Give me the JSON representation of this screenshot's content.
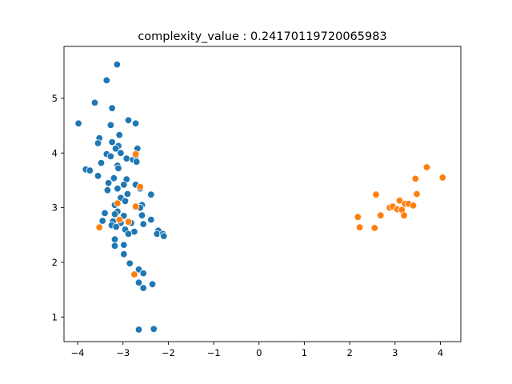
{
  "chart_data": {
    "type": "scatter",
    "title": "complexity_value : 0.24170119720065983",
    "xlabel": "",
    "ylabel": "",
    "xlim": [
      -4.3,
      4.45
    ],
    "ylim": [
      0.55,
      5.95
    ],
    "xticks": [
      -4,
      -3,
      -2,
      -1,
      0,
      1,
      2,
      3,
      4
    ],
    "xtick_labels": [
      "−4",
      "−3",
      "−2",
      "−1",
      "0",
      "1",
      "2",
      "3",
      "4"
    ],
    "yticks": [
      1,
      2,
      3,
      4,
      5
    ],
    "ytick_labels": [
      "1",
      "2",
      "3",
      "4",
      "5"
    ],
    "grid": false,
    "series": [
      {
        "color": "#1f77b4",
        "points": [
          [
            -3.13,
            5.62
          ],
          [
            -3.36,
            5.33
          ],
          [
            -3.62,
            4.92
          ],
          [
            -3.24,
            4.82
          ],
          [
            -3.98,
            4.54
          ],
          [
            -2.88,
            4.6
          ],
          [
            -3.27,
            4.51
          ],
          [
            -2.72,
            4.54
          ],
          [
            -3.08,
            4.33
          ],
          [
            -3.52,
            4.27
          ],
          [
            -3.55,
            4.18
          ],
          [
            -3.24,
            4.2
          ],
          [
            -3.1,
            4.13
          ],
          [
            -2.68,
            4.08
          ],
          [
            -3.16,
            4.08
          ],
          [
            -3.36,
            3.98
          ],
          [
            -3.27,
            3.94
          ],
          [
            -3.05,
            4.0
          ],
          [
            -2.92,
            3.9
          ],
          [
            -2.78,
            3.88
          ],
          [
            -2.72,
            3.95
          ],
          [
            -2.7,
            3.84
          ],
          [
            -3.48,
            3.82
          ],
          [
            -3.12,
            3.77
          ],
          [
            -3.1,
            3.72
          ],
          [
            -3.82,
            3.7
          ],
          [
            -3.73,
            3.68
          ],
          [
            -3.55,
            3.58
          ],
          [
            -3.2,
            3.54
          ],
          [
            -2.92,
            3.52
          ],
          [
            -3.32,
            3.45
          ],
          [
            -2.98,
            3.42
          ],
          [
            -2.72,
            3.42
          ],
          [
            -3.12,
            3.35
          ],
          [
            -3.34,
            3.32
          ],
          [
            -2.62,
            3.35
          ],
          [
            -2.38,
            3.24
          ],
          [
            -2.9,
            3.25
          ],
          [
            -3.05,
            3.18
          ],
          [
            -2.95,
            3.12
          ],
          [
            -3.18,
            3.05
          ],
          [
            -2.58,
            3.05
          ],
          [
            -2.62,
            3.0
          ],
          [
            -3.12,
            2.93
          ],
          [
            -3.18,
            2.88
          ],
          [
            -3.4,
            2.9
          ],
          [
            -2.98,
            2.85
          ],
          [
            -2.58,
            2.86
          ],
          [
            -2.38,
            2.78
          ],
          [
            -3.45,
            2.76
          ],
          [
            -3.22,
            2.75
          ],
          [
            -3.05,
            2.72
          ],
          [
            -3.25,
            2.68
          ],
          [
            -2.82,
            2.72
          ],
          [
            -2.55,
            2.7
          ],
          [
            -3.15,
            2.65
          ],
          [
            -2.95,
            2.6
          ],
          [
            -2.75,
            2.56
          ],
          [
            -2.22,
            2.58
          ],
          [
            -2.25,
            2.52
          ],
          [
            -2.12,
            2.52
          ],
          [
            -2.1,
            2.48
          ],
          [
            -2.88,
            2.52
          ],
          [
            -3.18,
            2.42
          ],
          [
            -2.98,
            2.32
          ],
          [
            -3.18,
            2.3
          ],
          [
            -2.98,
            2.15
          ],
          [
            -2.85,
            1.98
          ],
          [
            -2.65,
            1.87
          ],
          [
            -2.55,
            1.8
          ],
          [
            -2.65,
            1.63
          ],
          [
            -2.35,
            1.6
          ],
          [
            -2.55,
            1.53
          ],
          [
            -2.65,
            0.77
          ],
          [
            -2.32,
            0.78
          ]
        ]
      },
      {
        "color": "#ff7f0e",
        "points": [
          [
            -2.72,
            3.98
          ],
          [
            -2.62,
            3.38
          ],
          [
            -3.12,
            3.08
          ],
          [
            -2.72,
            3.02
          ],
          [
            -2.88,
            2.74
          ],
          [
            -3.08,
            2.78
          ],
          [
            -3.52,
            2.64
          ],
          [
            -2.75,
            1.78
          ],
          [
            2.18,
            2.83
          ],
          [
            2.22,
            2.64
          ],
          [
            2.55,
            2.63
          ],
          [
            2.58,
            3.24
          ],
          [
            2.68,
            2.86
          ],
          [
            2.88,
            3.0
          ],
          [
            2.95,
            3.02
          ],
          [
            3.05,
            2.97
          ],
          [
            3.1,
            3.13
          ],
          [
            3.15,
            2.96
          ],
          [
            3.2,
            2.86
          ],
          [
            3.22,
            3.07
          ],
          [
            3.3,
            3.07
          ],
          [
            3.4,
            3.04
          ],
          [
            3.45,
            3.53
          ],
          [
            3.48,
            3.25
          ],
          [
            3.7,
            3.74
          ],
          [
            4.05,
            3.55
          ]
        ]
      }
    ]
  }
}
